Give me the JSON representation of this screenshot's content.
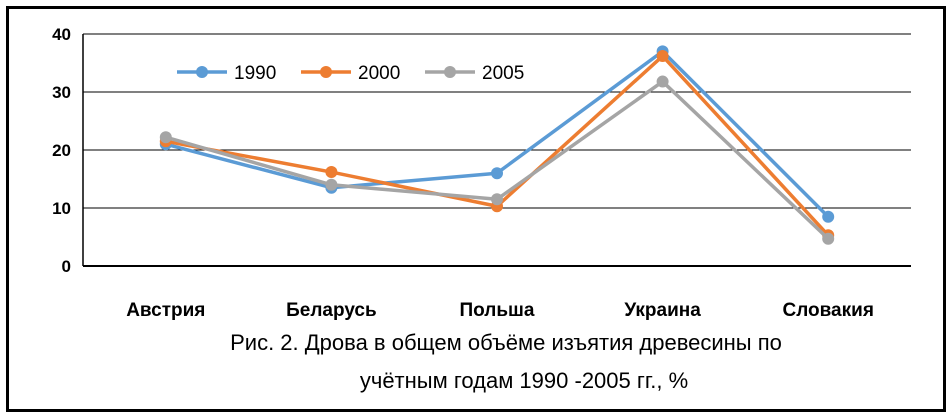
{
  "chart_data": {
    "type": "line",
    "categories": [
      "Австрия",
      "Беларусь",
      "Польша",
      "Украина",
      "Словакия"
    ],
    "series": [
      {
        "name": "1990",
        "color": "#5b9bd5",
        "values": [
          21,
          13.5,
          16,
          37,
          8.5
        ]
      },
      {
        "name": "2000",
        "color": "#ed7d31",
        "values": [
          21.5,
          16.2,
          10.3,
          36.2,
          5.3
        ]
      },
      {
        "name": "2005",
        "color": "#a5a5a5",
        "values": [
          22.2,
          14,
          11.5,
          31.8,
          4.7
        ]
      }
    ],
    "yticks": [
      0,
      10,
      20,
      30,
      40
    ],
    "ylim": [
      0,
      40
    ],
    "grid": true,
    "legend": "top-left"
  },
  "caption": {
    "line1": "Рис. 2. Дрова в общем объёме изъятия древесины по",
    "line2": "учётным годам 1990 -2005 гг., %"
  }
}
